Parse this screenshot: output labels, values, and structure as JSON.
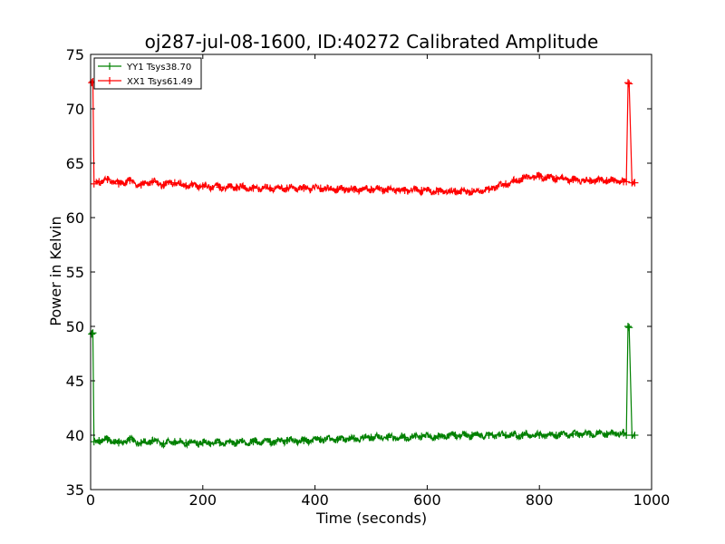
{
  "chart_data": {
    "type": "line",
    "title": "oj287-jul-08-1600, ID:40272 Calibrated Amplitude",
    "xlabel": "Time (seconds)",
    "ylabel": "Power in Kelvin",
    "xlim": [
      0,
      1000
    ],
    "ylim": [
      35,
      75
    ],
    "xticks": [
      0,
      200,
      400,
      600,
      800,
      1000
    ],
    "yticks": [
      35,
      40,
      45,
      50,
      55,
      60,
      65,
      70,
      75
    ],
    "grid": false,
    "legend_position": "top-left",
    "series": [
      {
        "name": "YY1 Tsys38.70",
        "color": "#008000",
        "x": [
          2,
          4,
          6,
          15,
          30,
          50,
          70,
          90,
          110,
          130,
          150,
          170,
          200,
          230,
          260,
          290,
          320,
          350,
          380,
          410,
          440,
          470,
          500,
          530,
          560,
          590,
          620,
          650,
          680,
          710,
          740,
          770,
          800,
          830,
          860,
          890,
          920,
          950,
          955,
          958,
          960,
          965,
          970
        ],
        "y": [
          49.3,
          49.4,
          39.4,
          39.5,
          39.6,
          39.3,
          39.6,
          39.3,
          39.5,
          39.2,
          39.4,
          39.3,
          39.3,
          39.3,
          39.3,
          39.4,
          39.4,
          39.5,
          39.5,
          39.6,
          39.6,
          39.7,
          39.8,
          39.8,
          39.8,
          39.9,
          39.9,
          40.0,
          40.0,
          40.0,
          40.0,
          40.0,
          40.0,
          40.0,
          40.1,
          40.1,
          40.1,
          40.2,
          40.0,
          50.0,
          49.9,
          40.0,
          40.0
        ]
      },
      {
        "name": "XX1 Tsys61.49",
        "color": "#ff0000",
        "x": [
          2,
          4,
          6,
          15,
          30,
          50,
          70,
          90,
          110,
          130,
          150,
          170,
          200,
          230,
          260,
          290,
          320,
          350,
          380,
          410,
          440,
          470,
          500,
          530,
          560,
          590,
          620,
          650,
          680,
          710,
          740,
          770,
          800,
          830,
          860,
          890,
          920,
          950,
          955,
          958,
          960,
          965,
          970
        ],
        "y": [
          72.4,
          72.5,
          63.1,
          63.3,
          63.5,
          63.1,
          63.4,
          63.0,
          63.3,
          63.0,
          63.2,
          62.9,
          62.9,
          62.8,
          62.8,
          62.7,
          62.7,
          62.7,
          62.7,
          62.7,
          62.6,
          62.6,
          62.6,
          62.6,
          62.5,
          62.5,
          62.4,
          62.4,
          62.4,
          62.6,
          63.1,
          63.6,
          63.8,
          63.6,
          63.5,
          63.4,
          63.4,
          63.3,
          63.3,
          72.4,
          72.3,
          63.2,
          63.2
        ]
      }
    ]
  }
}
